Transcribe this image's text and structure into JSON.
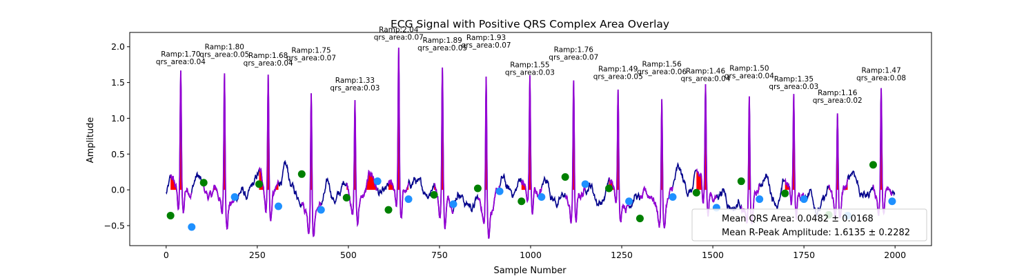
{
  "chart_data": {
    "type": "line",
    "title": "ECG Signal with Positive QRS Complex Area Overlay",
    "xlabel": "Sample Number",
    "ylabel": "Amplitude",
    "xlim": [
      -100,
      2100
    ],
    "ylim": [
      -0.78,
      2.2
    ],
    "x_ticks": [
      0,
      250,
      500,
      750,
      1000,
      1250,
      1500,
      1750,
      2000
    ],
    "y_ticks": [
      -0.5,
      0.0,
      0.5,
      1.0,
      1.5,
      2.0
    ],
    "x_tick_labels": [
      "0",
      "250",
      "500",
      "750",
      "1000",
      "1250",
      "1500",
      "1750",
      "2000"
    ],
    "y_tick_labels": [
      "−0.5",
      "0.0",
      "0.5",
      "1.0",
      "1.5",
      "2.0"
    ],
    "colors": {
      "raw_signal": "#00008b",
      "qrs_segment": "#9400d3",
      "qrs_area": "#ff0000",
      "qrs_onset": "#008000",
      "qrs_offset": "#1e90ff"
    },
    "beats": [
      {
        "r": 40,
        "ramp": 1.7,
        "area": 0.04,
        "onset_x": 12,
        "onset_y": -0.36,
        "offset_x": 70,
        "offset_y": -0.52,
        "ramp_label": "Ramp:1.70",
        "area_label": "qrs_area:0.04"
      },
      {
        "r": 160,
        "ramp": 1.8,
        "area": 0.05,
        "onset_x": 103,
        "onset_y": 0.1,
        "offset_x": 188,
        "offset_y": -0.1,
        "ramp_label": "Ramp:1.80",
        "area_label": "qrs_area:0.05"
      },
      {
        "r": 280,
        "ramp": 1.68,
        "area": 0.04,
        "onset_x": 255,
        "onset_y": 0.08,
        "offset_x": 308,
        "offset_y": -0.23,
        "ramp_label": "Ramp:1.68",
        "area_label": "qrs_area:0.04"
      },
      {
        "r": 398,
        "ramp": 1.75,
        "area": 0.07,
        "onset_x": 372,
        "onset_y": 0.22,
        "offset_x": 425,
        "offset_y": -0.28,
        "ramp_label": "Ramp:1.75",
        "area_label": "qrs_area:0.07"
      },
      {
        "r": 518,
        "ramp": 1.33,
        "area": 0.03,
        "onset_x": 495,
        "onset_y": -0.11,
        "offset_x": 580,
        "offset_y": 0.12,
        "ramp_label": "Ramp:1.33",
        "area_label": "qrs_area:0.03"
      },
      {
        "r": 638,
        "ramp": 2.04,
        "area": 0.07,
        "onset_x": 610,
        "onset_y": -0.28,
        "offset_x": 665,
        "offset_y": -0.13,
        "ramp_label": "Ramp:2.04",
        "area_label": "qrs_area:0.07"
      },
      {
        "r": 758,
        "ramp": 1.89,
        "area": 0.05,
        "onset_x": 735,
        "onset_y": -0.07,
        "offset_x": 788,
        "offset_y": -0.2,
        "ramp_label": "Ramp:1.89",
        "area_label": "qrs_area:0.05"
      },
      {
        "r": 878,
        "ramp": 1.93,
        "area": 0.07,
        "onset_x": 855,
        "onset_y": 0.02,
        "offset_x": 915,
        "offset_y": -0.02,
        "ramp_label": "Ramp:1.93",
        "area_label": "qrs_area:0.07"
      },
      {
        "r": 998,
        "ramp": 1.55,
        "area": 0.03,
        "onset_x": 975,
        "onset_y": -0.16,
        "offset_x": 1030,
        "offset_y": -0.1,
        "ramp_label": "Ramp:1.55",
        "area_label": "qrs_area:0.03"
      },
      {
        "r": 1118,
        "ramp": 1.76,
        "area": 0.07,
        "onset_x": 1095,
        "onset_y": 0.18,
        "offset_x": 1150,
        "offset_y": 0.08,
        "ramp_label": "Ramp:1.76",
        "area_label": "qrs_area:0.07"
      },
      {
        "r": 1240,
        "ramp": 1.49,
        "area": 0.05,
        "onset_x": 1215,
        "onset_y": 0.02,
        "offset_x": 1270,
        "offset_y": -0.16,
        "ramp_label": "Ramp:1.49",
        "area_label": "qrs_area:0.05"
      },
      {
        "r": 1360,
        "ramp": 1.56,
        "area": 0.06,
        "onset_x": 1300,
        "onset_y": -0.4,
        "offset_x": 1390,
        "offset_y": -0.1,
        "ramp_label": "Ramp:1.56",
        "area_label": "qrs_area:0.06"
      },
      {
        "r": 1480,
        "ramp": 1.46,
        "area": 0.04,
        "onset_x": 1455,
        "onset_y": -0.04,
        "offset_x": 1510,
        "offset_y": -0.25,
        "ramp_label": "Ramp:1.46",
        "area_label": "qrs_area:0.04"
      },
      {
        "r": 1600,
        "ramp": 1.5,
        "area": 0.04,
        "onset_x": 1578,
        "onset_y": 0.12,
        "offset_x": 1628,
        "offset_y": -0.13,
        "ramp_label": "Ramp:1.50",
        "area_label": "qrs_area:0.04"
      },
      {
        "r": 1722,
        "ramp": 1.35,
        "area": 0.03,
        "onset_x": 1698,
        "onset_y": -0.05,
        "offset_x": 1750,
        "offset_y": -0.13,
        "ramp_label": "Ramp:1.35",
        "area_label": "qrs_area:0.03"
      },
      {
        "r": 1842,
        "ramp": 1.16,
        "area": 0.02,
        "onset_x": 1818,
        "onset_y": -0.35,
        "offset_x": 1870,
        "offset_y": -0.36,
        "ramp_label": "Ramp:1.16",
        "area_label": "qrs_area:0.02"
      },
      {
        "r": 1962,
        "ramp": 1.47,
        "area": 0.08,
        "onset_x": 1940,
        "onset_y": 0.35,
        "offset_x": 1992,
        "offset_y": -0.16,
        "ramp_label": "Ramp:1.47",
        "area_label": "qrs_area:0.08"
      }
    ],
    "legend": {
      "placement": "lower-right",
      "entries": [
        "Mean QRS Area: 0.0482 ± 0.0168",
        "Mean R-Peak Amplitude: 1.6135 ± 0.2282"
      ]
    },
    "grid": false
  }
}
